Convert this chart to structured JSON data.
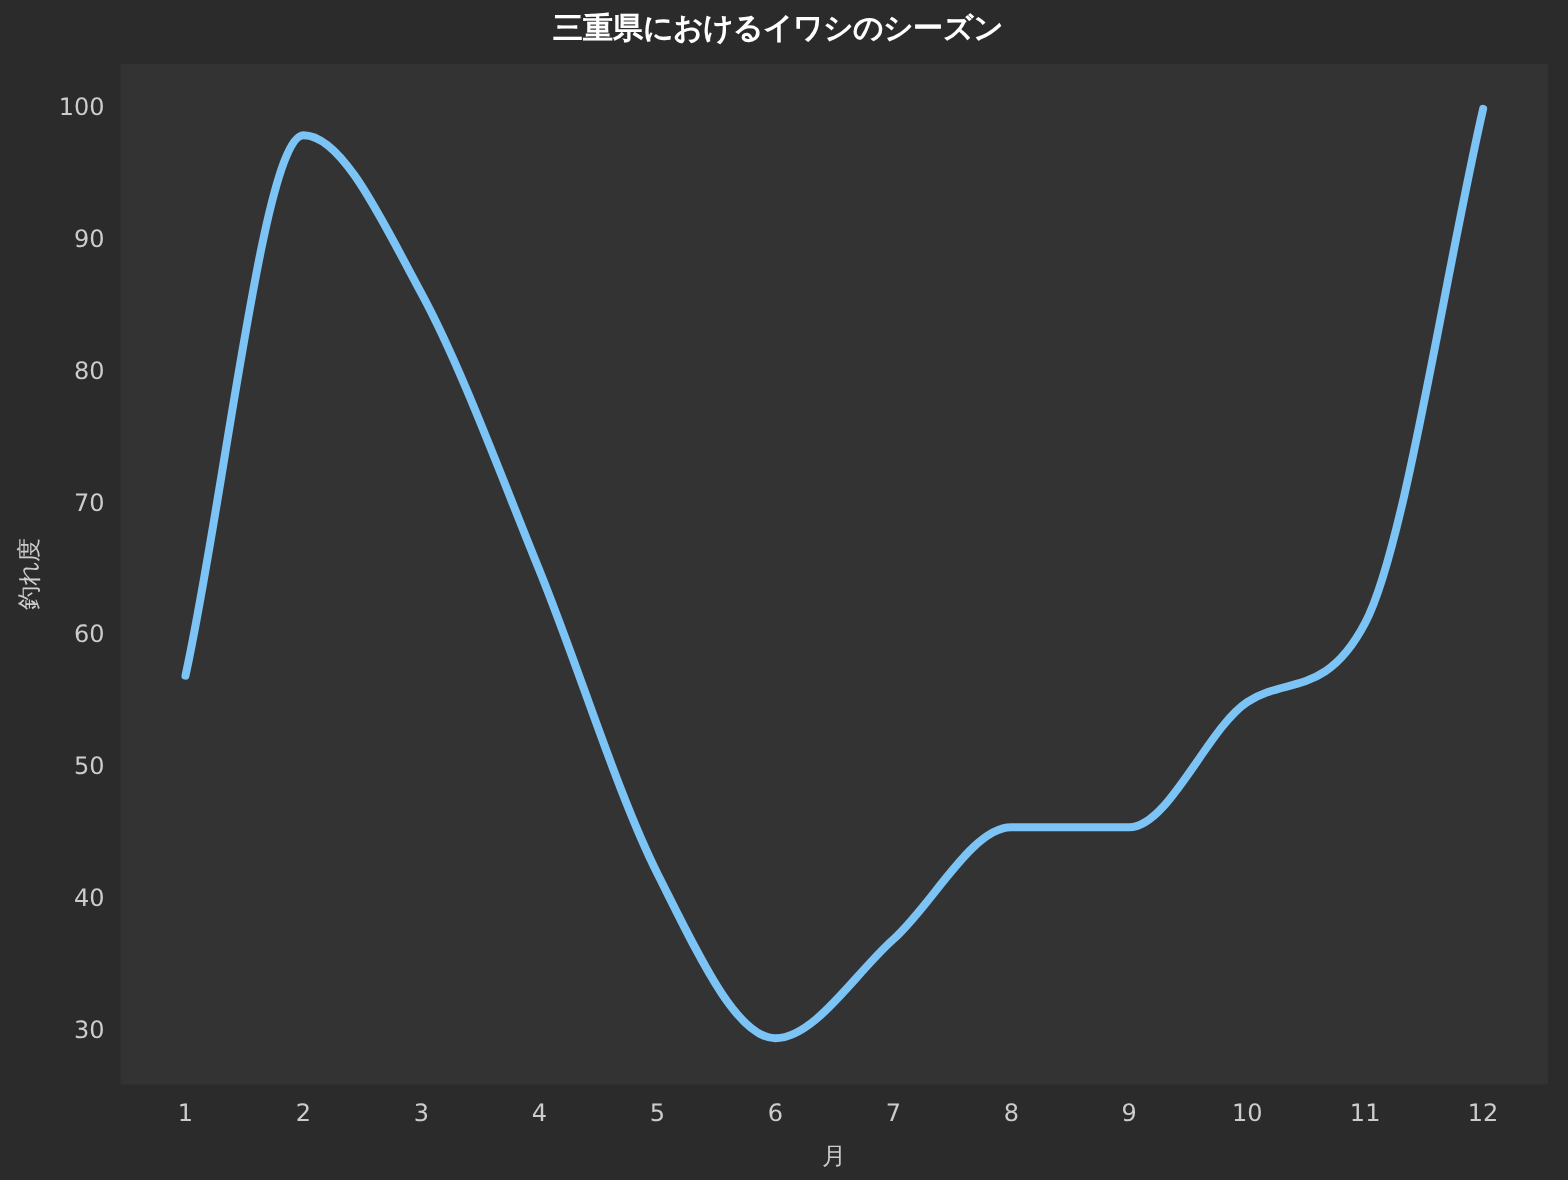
{
  "chart_data": {
    "type": "line",
    "title": "三重県におけるイワシのシーズン",
    "xlabel": "月",
    "ylabel": "釣れ度",
    "x": [
      1,
      2,
      3,
      4,
      5,
      6,
      7,
      8,
      9,
      10,
      11,
      12
    ],
    "series": [
      {
        "color": "#7cc4f5",
        "values": [
          57,
          98,
          86,
          65,
          42,
          29.5,
          37,
          45.5,
          45.5,
          55,
          61,
          100
        ]
      }
    ],
    "xlim": [
      0.45,
      12.55
    ],
    "xticks": [
      1,
      2,
      3,
      4,
      5,
      6,
      7,
      8,
      9,
      10,
      11,
      12
    ],
    "ylim": [
      26,
      103.4
    ],
    "yticks": [
      30,
      40,
      50,
      60,
      70,
      80,
      90,
      100
    ],
    "grid": false,
    "legend": false,
    "marker": "none",
    "line_style": "solid"
  }
}
